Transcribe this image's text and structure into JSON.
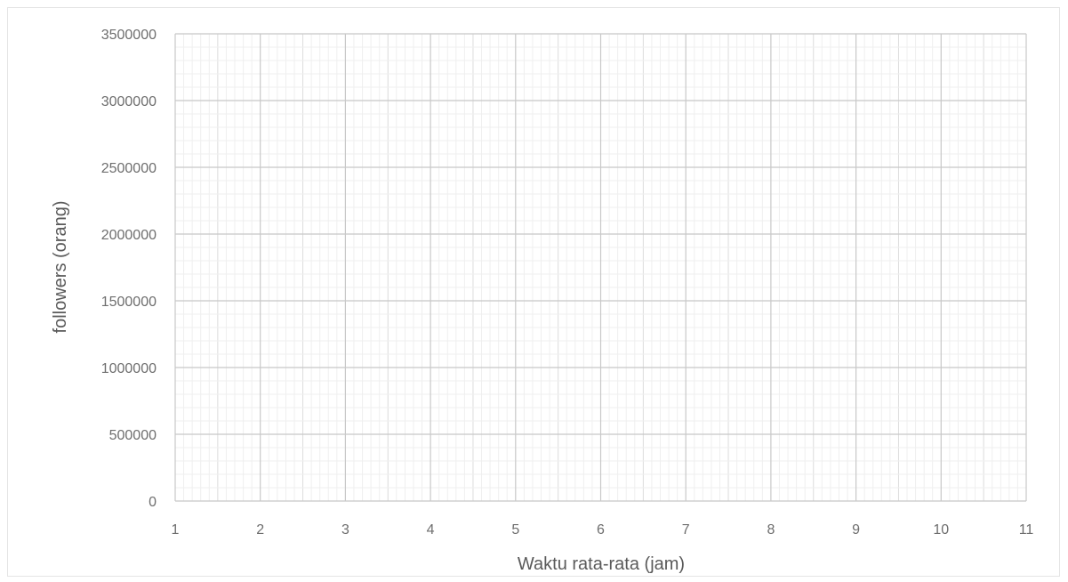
{
  "chart_data": {
    "type": "scatter",
    "title": "",
    "xlabel": "Waktu rata-rata (jam)",
    "ylabel": "followers (orang)",
    "xlim": [
      1,
      11
    ],
    "ylim": [
      0,
      3500000
    ],
    "x_ticks": [
      "1",
      "2",
      "3",
      "4",
      "5",
      "6",
      "7",
      "8",
      "9",
      "10",
      "11"
    ],
    "y_ticks": [
      "0",
      "500000",
      "1000000",
      "1500000",
      "2000000",
      "2500000",
      "3000000",
      "3500000"
    ],
    "grid": true,
    "minor_grid": true,
    "series": []
  }
}
